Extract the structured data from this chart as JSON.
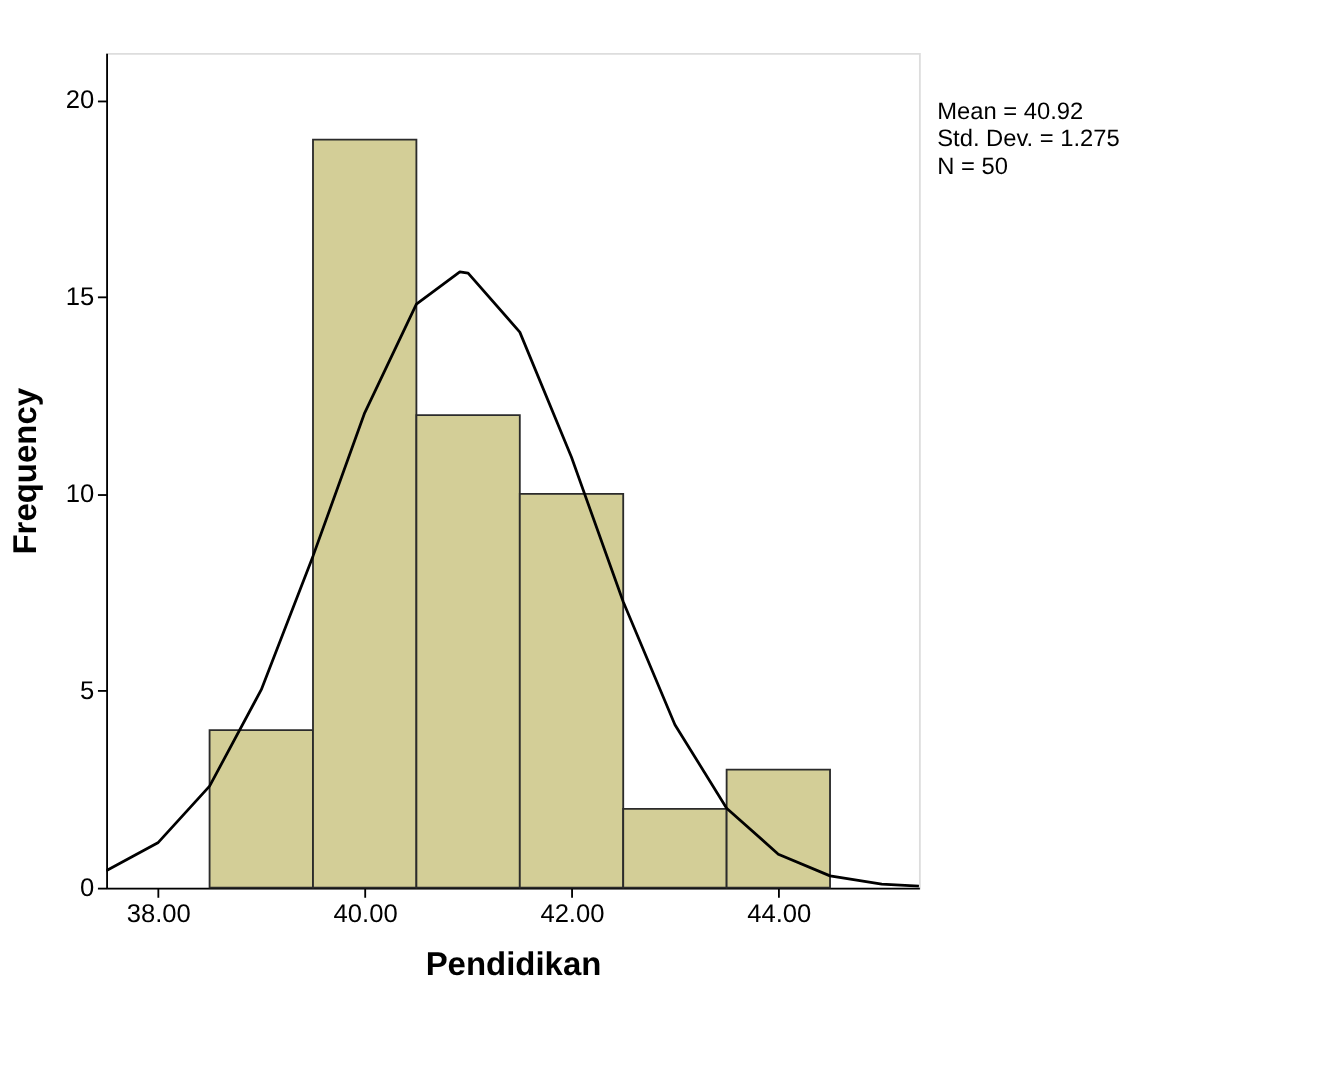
{
  "chart_data": {
    "type": "histogram",
    "xlabel": "Pendidikan",
    "ylabel": "Frequency",
    "bins": [
      38.5,
      39.5,
      40.5,
      41.5,
      42.5,
      43.5,
      44.5
    ],
    "values": [
      4,
      19,
      12,
      10,
      2,
      3
    ],
    "color": "#d3ce97",
    "series": [
      {
        "type": "line",
        "color": "#000000",
        "x": [
          37.5,
          38.0,
          38.5,
          39.0,
          39.5,
          40.0,
          40.5,
          40.92,
          41.0,
          41.5,
          42.0,
          42.5,
          43.0,
          43.5,
          44.0,
          44.5,
          45.0,
          45.36
        ],
        "values": [
          0.43,
          1.14,
          2.58,
          5.03,
          8.42,
          12.06,
          14.82,
          15.64,
          15.61,
          14.11,
          10.93,
          7.26,
          4.14,
          2.02,
          0.85,
          0.3,
          0.09,
          0.04
        ]
      }
    ],
    "xlim": [
      37.5,
      45.36
    ],
    "xticks": [
      {
        "value": 38,
        "label": "38.00"
      },
      {
        "value": 40,
        "label": "40.00"
      },
      {
        "value": 42,
        "label": "42.00"
      },
      {
        "value": 44,
        "label": "44.00"
      }
    ],
    "ylim": [
      0,
      21.2
    ],
    "yticks": [
      0,
      5,
      10,
      15,
      20
    ],
    "grid": false,
    "annotations": [
      "Mean = 40.92",
      "Std. Dev. = 1.275",
      "N = 50"
    ]
  }
}
